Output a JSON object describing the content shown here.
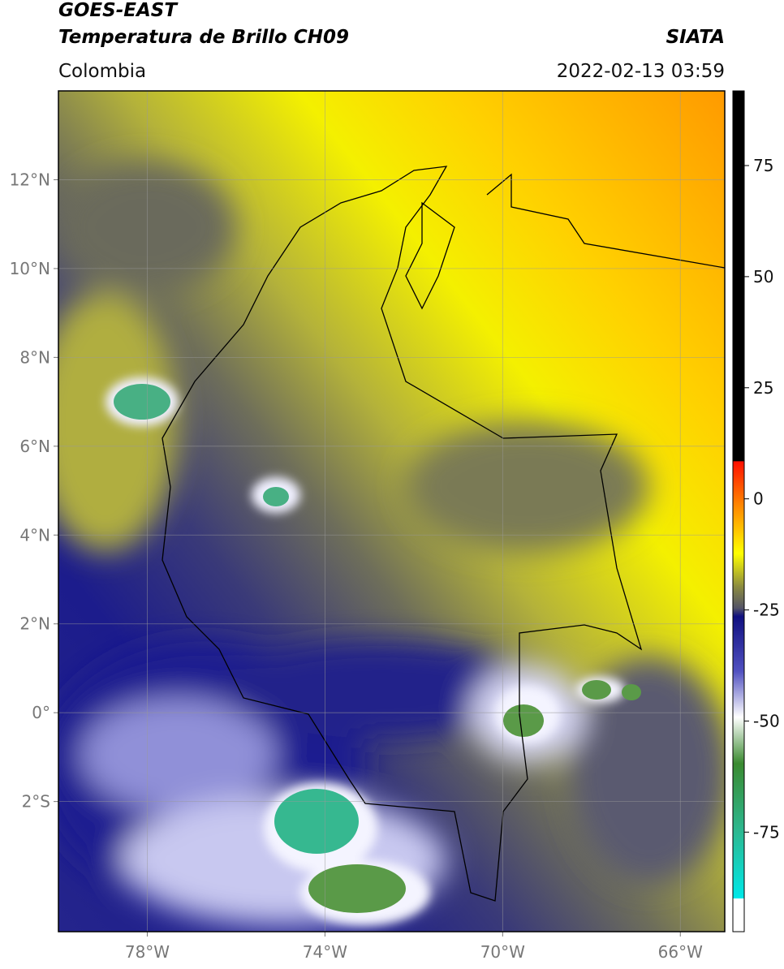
{
  "header": {
    "title_line1": "GOES-EAST",
    "title_line2": "Temperatura de Brillo CH09",
    "region": "Colombia",
    "source": "SIATA",
    "timestamp": "2022-02-13 03:59"
  },
  "map": {
    "xlim": [
      -80,
      -65
    ],
    "ylim": [
      -4.93,
      14
    ],
    "lon_ticks": [
      {
        "value": -78,
        "label": "78°W"
      },
      {
        "value": -74,
        "label": "74°W"
      },
      {
        "value": -70,
        "label": "70°W"
      },
      {
        "value": -66,
        "label": "66°W"
      }
    ],
    "lat_ticks": [
      {
        "value": 12,
        "label": "12°N"
      },
      {
        "value": 10,
        "label": "10°N"
      },
      {
        "value": 8,
        "label": "8°N"
      },
      {
        "value": 6,
        "label": "6°N"
      },
      {
        "value": 4,
        "label": "4°N"
      },
      {
        "value": 2,
        "label": "2°N"
      },
      {
        "value": 0,
        "label": "0°"
      },
      {
        "value": -2,
        "label": "2°S"
      }
    ]
  },
  "colorbar": {
    "lim": [
      -97.4,
      91.8
    ],
    "ticks": [
      75,
      50,
      25,
      0,
      -25,
      -50,
      -75
    ]
  }
}
